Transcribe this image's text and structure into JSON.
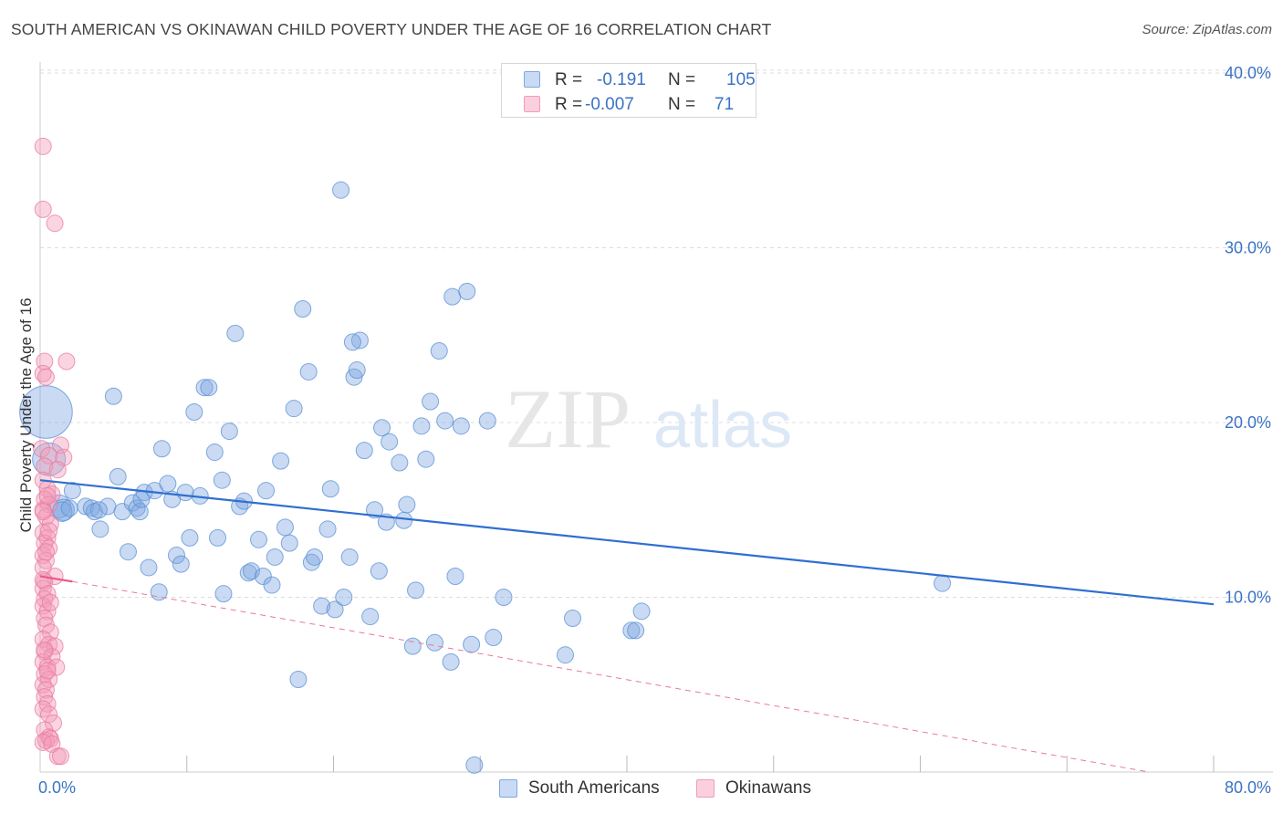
{
  "header": {
    "title": "SOUTH AMERICAN VS OKINAWAN CHILD POVERTY UNDER THE AGE OF 16 CORRELATION CHART",
    "source": "Source: ZipAtlas.com"
  },
  "watermark": {
    "zip": "ZIP",
    "atlas": "atlas"
  },
  "legend": {
    "r_label": "R =",
    "n_label": "N =",
    "rows": [
      {
        "series": "South Americans",
        "r": "-0.191",
        "n": "105",
        "color": "#7ea7e0"
      },
      {
        "series": "Okinawans",
        "r": "-0.007",
        "n": "71",
        "color": "#f29bb8"
      }
    ]
  },
  "chart_data": {
    "type": "scatter",
    "title": "SOUTH AMERICAN VS OKINAWAN CHILD POVERTY UNDER THE AGE OF 16 CORRELATION CHART",
    "xlabel": "",
    "ylabel": "Child Poverty Under the Age of 16",
    "xlim": [
      0,
      80
    ],
    "ylim": [
      0,
      40
    ],
    "x_tick_labels": [
      "0.0%",
      "80.0%"
    ],
    "y_ticks": [
      10,
      20,
      30,
      40
    ],
    "y_tick_labels": [
      "10.0%",
      "20.0%",
      "30.0%",
      "40.0%"
    ],
    "grid": true,
    "series": [
      {
        "name": "South Americans",
        "color": "#7ea7e0",
        "stroke": "#5a8fd6",
        "trend": {
          "x": [
            0,
            80
          ],
          "y": [
            16.7,
            9.6
          ],
          "color": "#2f6fd0",
          "style": "solid"
        },
        "points": [
          [
            0.4,
            20.6,
            3.2
          ],
          [
            0.6,
            17.9,
            2.0
          ],
          [
            1.3,
            15.2,
            1.4
          ],
          [
            1.6,
            15.0,
            1.3
          ],
          [
            1.5,
            14.9,
            1.2
          ],
          [
            2.0,
            15.1,
            1.0
          ],
          [
            2.2,
            16.1,
            1.0
          ],
          [
            3.1,
            15.2,
            1.0
          ],
          [
            3.5,
            15.1,
            1.0
          ],
          [
            3.7,
            14.9,
            1.0
          ],
          [
            4.1,
            13.9,
            1.0
          ],
          [
            4.6,
            15.2,
            1.0
          ],
          [
            5.0,
            21.5,
            1.0
          ],
          [
            5.3,
            16.9,
            1.0
          ],
          [
            5.6,
            14.9,
            1.0
          ],
          [
            6.0,
            12.6,
            1.0
          ],
          [
            6.3,
            15.4,
            1.0
          ],
          [
            6.6,
            15.1,
            1.0
          ],
          [
            6.8,
            14.9,
            1.0
          ],
          [
            7.1,
            16.0,
            1.0
          ],
          [
            7.4,
            11.7,
            1.0
          ],
          [
            7.8,
            16.1,
            1.0
          ],
          [
            8.1,
            10.3,
            1.0
          ],
          [
            8.3,
            18.5,
            1.0
          ],
          [
            8.7,
            16.5,
            1.0
          ],
          [
            9.0,
            15.6,
            1.0
          ],
          [
            9.3,
            12.4,
            1.0
          ],
          [
            9.6,
            11.9,
            1.0
          ],
          [
            9.9,
            16.0,
            1.0
          ],
          [
            10.2,
            13.4,
            1.0
          ],
          [
            10.5,
            20.6,
            1.0
          ],
          [
            10.9,
            15.8,
            1.0
          ],
          [
            11.2,
            22.0,
            1.0
          ],
          [
            11.5,
            22.0,
            1.0
          ],
          [
            11.9,
            18.3,
            1.0
          ],
          [
            12.1,
            13.4,
            1.0
          ],
          [
            12.4,
            16.7,
            1.0
          ],
          [
            12.5,
            10.2,
            1.0
          ],
          [
            12.9,
            19.5,
            1.0
          ],
          [
            13.3,
            25.1,
            1.0
          ],
          [
            13.6,
            15.2,
            1.0
          ],
          [
            13.9,
            15.5,
            1.0
          ],
          [
            14.2,
            11.4,
            1.0
          ],
          [
            14.4,
            11.5,
            1.0
          ],
          [
            14.9,
            13.3,
            1.0
          ],
          [
            15.2,
            11.2,
            1.0
          ],
          [
            15.4,
            16.1,
            1.0
          ],
          [
            15.8,
            10.7,
            1.0
          ],
          [
            16.0,
            12.3,
            1.0
          ],
          [
            16.4,
            17.8,
            1.0
          ],
          [
            16.7,
            14.0,
            1.0
          ],
          [
            17.0,
            13.1,
            1.0
          ],
          [
            17.3,
            20.8,
            1.0
          ],
          [
            17.6,
            5.3,
            1.0
          ],
          [
            17.9,
            26.5,
            1.0
          ],
          [
            18.3,
            22.9,
            1.0
          ],
          [
            18.5,
            12.0,
            1.0
          ],
          [
            18.7,
            12.3,
            1.0
          ],
          [
            19.2,
            9.5,
            1.0
          ],
          [
            19.6,
            13.9,
            1.0
          ],
          [
            19.8,
            16.2,
            1.0
          ],
          [
            20.1,
            9.3,
            1.0
          ],
          [
            20.5,
            33.3,
            1.0
          ],
          [
            20.7,
            10.0,
            1.0
          ],
          [
            21.1,
            12.3,
            1.0
          ],
          [
            21.4,
            22.6,
            1.0
          ],
          [
            21.6,
            23.0,
            1.0
          ],
          [
            21.8,
            24.7,
            1.0
          ],
          [
            22.1,
            18.4,
            1.0
          ],
          [
            22.5,
            8.9,
            1.0
          ],
          [
            22.8,
            15.0,
            1.0
          ],
          [
            23.1,
            11.5,
            1.0
          ],
          [
            23.3,
            19.7,
            1.0
          ],
          [
            23.6,
            14.3,
            1.0
          ],
          [
            23.8,
            18.9,
            1.0
          ],
          [
            24.5,
            17.7,
            1.0
          ],
          [
            24.8,
            14.4,
            1.0
          ],
          [
            25.0,
            15.3,
            1.0
          ],
          [
            25.4,
            7.2,
            1.0
          ],
          [
            25.6,
            10.4,
            1.0
          ],
          [
            26.0,
            19.8,
            1.0
          ],
          [
            26.3,
            17.9,
            1.0
          ],
          [
            26.6,
            21.2,
            1.0
          ],
          [
            26.9,
            7.4,
            1.0
          ],
          [
            27.2,
            24.1,
            1.0
          ],
          [
            27.6,
            20.1,
            1.0
          ],
          [
            28.0,
            6.3,
            1.0
          ],
          [
            28.1,
            27.2,
            1.0
          ],
          [
            28.3,
            11.2,
            1.0
          ],
          [
            28.7,
            19.8,
            1.0
          ],
          [
            29.1,
            27.5,
            1.0
          ],
          [
            29.4,
            7.3,
            1.0
          ],
          [
            29.6,
            0.4,
            1.0
          ],
          [
            30.5,
            20.1,
            1.0
          ],
          [
            30.9,
            7.7,
            1.0
          ],
          [
            31.6,
            10.0,
            1.0
          ],
          [
            35.8,
            6.7,
            1.0
          ],
          [
            36.3,
            8.8,
            1.0
          ],
          [
            40.3,
            8.1,
            1.0
          ],
          [
            40.6,
            8.1,
            1.0
          ],
          [
            41.0,
            9.2,
            1.0
          ],
          [
            61.5,
            10.8,
            1.0
          ],
          [
            21.3,
            24.6,
            1.0
          ],
          [
            6.9,
            15.6,
            1.0
          ],
          [
            4.0,
            15.0,
            1.0
          ]
        ]
      },
      {
        "name": "Okinawans",
        "color": "#f29bb8",
        "stroke": "#e8799e",
        "trend": {
          "x": [
            0,
            2.2
          ],
          "y": [
            11.2,
            10.9
          ],
          "color": "#e85c8c",
          "style": "solid"
        },
        "trend_extension": {
          "x": [
            2.2,
            75.6
          ],
          "y": [
            10.9,
            0.0
          ],
          "color": "#e8799e",
          "style": "dashed"
        },
        "points": [
          [
            0.2,
            35.8,
            1.0
          ],
          [
            0.2,
            32.2,
            1.0
          ],
          [
            1.0,
            31.4,
            1.0
          ],
          [
            0.3,
            23.5,
            1.0
          ],
          [
            1.8,
            23.5,
            1.0
          ],
          [
            0.2,
            22.8,
            1.0
          ],
          [
            0.4,
            22.6,
            1.0
          ],
          [
            0.1,
            18.5,
            1.0
          ],
          [
            1.4,
            18.7,
            1.0
          ],
          [
            0.6,
            18.1,
            1.0
          ],
          [
            1.6,
            18.0,
            1.0
          ],
          [
            0.3,
            17.5,
            1.0
          ],
          [
            1.2,
            17.3,
            1.0
          ],
          [
            0.2,
            16.7,
            1.0
          ],
          [
            0.5,
            16.2,
            1.0
          ],
          [
            0.8,
            15.9,
            1.0
          ],
          [
            0.3,
            15.6,
            1.0
          ],
          [
            0.6,
            15.3,
            1.0
          ],
          [
            0.2,
            15.0,
            1.0
          ],
          [
            0.4,
            14.6,
            1.0
          ],
          [
            0.7,
            14.2,
            1.0
          ],
          [
            0.2,
            13.7,
            1.0
          ],
          [
            0.5,
            13.4,
            1.0
          ],
          [
            0.3,
            13.1,
            1.0
          ],
          [
            0.6,
            12.8,
            1.0
          ],
          [
            0.2,
            12.4,
            1.0
          ],
          [
            0.4,
            12.1,
            1.0
          ],
          [
            0.2,
            11.7,
            1.0
          ],
          [
            1.0,
            11.2,
            1.0
          ],
          [
            0.3,
            10.9,
            1.0
          ],
          [
            0.2,
            10.5,
            1.0
          ],
          [
            0.5,
            10.2,
            1.0
          ],
          [
            0.3,
            9.9,
            1.0
          ],
          [
            0.2,
            9.5,
            1.0
          ],
          [
            0.5,
            9.2,
            1.0
          ],
          [
            0.3,
            8.8,
            1.0
          ],
          [
            0.4,
            8.4,
            1.0
          ],
          [
            0.7,
            8.0,
            1.0
          ],
          [
            0.2,
            7.6,
            1.0
          ],
          [
            0.6,
            7.3,
            1.0
          ],
          [
            1.0,
            7.2,
            1.0
          ],
          [
            0.3,
            6.9,
            1.0
          ],
          [
            0.8,
            6.6,
            1.0
          ],
          [
            0.2,
            6.3,
            1.0
          ],
          [
            0.5,
            6.0,
            1.0
          ],
          [
            1.1,
            6.0,
            1.0
          ],
          [
            0.3,
            5.6,
            1.0
          ],
          [
            0.6,
            5.3,
            1.0
          ],
          [
            0.2,
            5.0,
            1.0
          ],
          [
            0.4,
            4.7,
            1.0
          ],
          [
            0.3,
            4.3,
            1.0
          ],
          [
            0.5,
            3.9,
            1.0
          ],
          [
            0.2,
            3.6,
            1.0
          ],
          [
            0.6,
            3.3,
            1.0
          ],
          [
            0.9,
            2.8,
            1.0
          ],
          [
            0.3,
            2.4,
            1.0
          ],
          [
            0.6,
            2.0,
            1.0
          ],
          [
            0.4,
            1.8,
            1.0
          ],
          [
            0.7,
            1.9,
            1.0
          ],
          [
            0.2,
            1.7,
            1.0
          ],
          [
            0.8,
            1.6,
            1.0
          ],
          [
            1.2,
            0.9,
            1.0
          ],
          [
            1.4,
            0.9,
            1.0
          ],
          [
            0.5,
            15.8,
            1.0
          ],
          [
            0.2,
            14.9,
            1.0
          ],
          [
            0.6,
            13.8,
            1.0
          ],
          [
            0.4,
            12.6,
            1.0
          ],
          [
            0.2,
            11.0,
            1.0
          ],
          [
            0.7,
            9.7,
            1.0
          ],
          [
            0.3,
            7.0,
            1.0
          ],
          [
            0.5,
            5.8,
            1.0
          ]
        ]
      }
    ]
  }
}
